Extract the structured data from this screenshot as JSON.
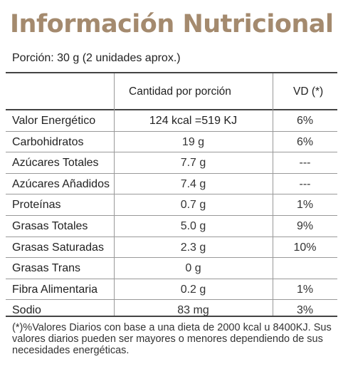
{
  "title": "Información Nutricional",
  "portion": "Porción: 30 g (2 unidades aprox.)",
  "headers": {
    "quantity": "Cantidad por porción",
    "vd": "VD (*)"
  },
  "rows": [
    {
      "name": "Valor Energético",
      "qty": "124 kcal =519 KJ",
      "vd": "6%"
    },
    {
      "name": "Carbohidratos",
      "qty": "19 g",
      "vd": "6%"
    },
    {
      "name": "Azúcares Totales",
      "qty": "7.7 g",
      "vd": "---"
    },
    {
      "name": "Azúcares Añadidos",
      "qty": "7.4 g",
      "vd": "---"
    },
    {
      "name": "Proteínas",
      "qty": "0.7 g",
      "vd": "1%"
    },
    {
      "name": "Grasas Totales",
      "qty": "5.0 g",
      "vd": "9%"
    },
    {
      "name": "Grasas Saturadas",
      "qty": "2.3 g",
      "vd": "10%"
    },
    {
      "name": "Grasas Trans",
      "qty": "0 g",
      "vd": ""
    },
    {
      "name": "Fibra Alimentaria",
      "qty": "0.2 g",
      "vd": "1%"
    },
    {
      "name": "Sodio",
      "qty": "83 mg",
      "vd": "3%"
    }
  ],
  "footnote": "(*)%Valores Diarios con base a una dieta de 2000 kcal u 8400KJ. Sus valores diarios pueden ser mayores o menores dependiendo de sus necesidades energéticas.",
  "colors": {
    "title": "#a48a6e"
  }
}
